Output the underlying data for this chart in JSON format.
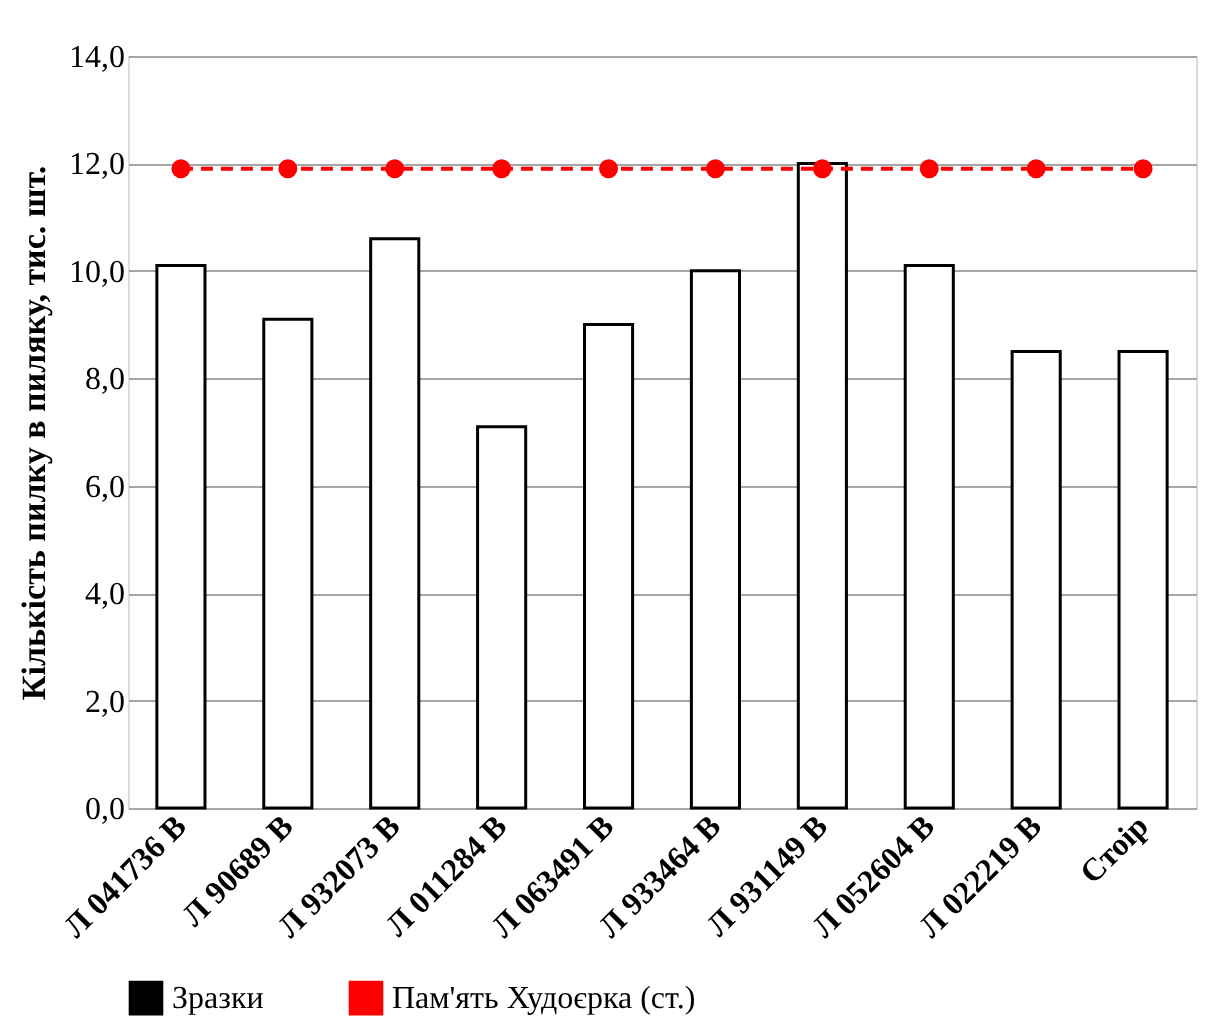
{
  "chart_data": {
    "type": "bar",
    "ylabel": "Кількість пилку в пиляку, тис. шт.",
    "categories": [
      "Л 041736 В",
      "Л 90689 В",
      "Л 932073 В",
      "Л 011284 В",
      "Л 063491 В",
      "Л 933464 В",
      "Л 931149 В",
      "Л 052604 В",
      "Л 022219 В",
      "Стоір"
    ],
    "series": [
      {
        "name": "Зразки",
        "color": "#000000",
        "values": [
          10.1,
          9.1,
          10.6,
          7.1,
          9.0,
          10.0,
          12.0,
          10.1,
          8.5,
          8.5
        ]
      },
      {
        "name": "Пам'ять Худоєрка (ст.)",
        "type": "line",
        "color": "#ff0000",
        "marker": "circle",
        "line_style": "dashed",
        "values": [
          11.9,
          11.9,
          11.9,
          11.9,
          11.9,
          11.9,
          11.9,
          11.9,
          11.9,
          11.9
        ]
      }
    ],
    "ylim": [
      0,
      14
    ],
    "yticks": [
      {
        "value": 0,
        "label": "0,0"
      },
      {
        "value": 2,
        "label": "2,0"
      },
      {
        "value": 4,
        "label": "4,0"
      },
      {
        "value": 6,
        "label": "6,0"
      },
      {
        "value": 8,
        "label": "8,0"
      },
      {
        "value": 10,
        "label": "10,0"
      },
      {
        "value": 12,
        "label": "12,0"
      },
      {
        "value": 14,
        "label": "14,0"
      }
    ],
    "grid": "y",
    "legend": "bottom"
  }
}
